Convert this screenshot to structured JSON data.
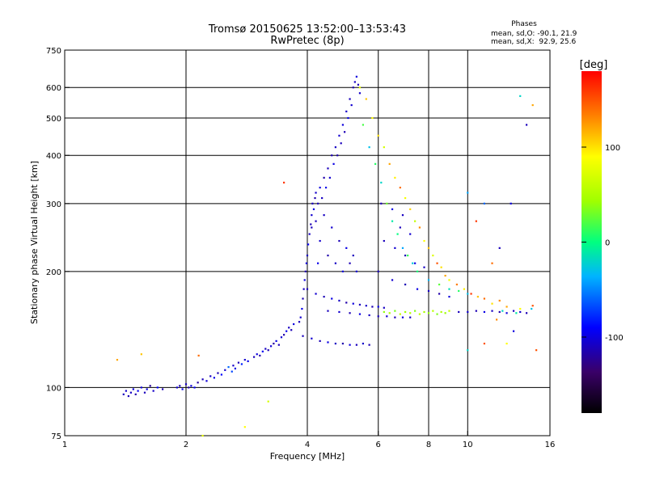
{
  "title": "Tromsø 20150625 13:52:00–13:53:43",
  "subtitle": "RwPretec (8p)",
  "stats": {
    "heading": "Phases",
    "line_o": "mean, sd,O: -90.1, 21.9",
    "line_x": "mean, sd,X:  92.9, 25.6"
  },
  "colorbar": {
    "label": "[deg]",
    "range": [
      -180,
      180
    ],
    "ticks": [
      {
        "value": 100,
        "label": "100"
      },
      {
        "value": 0,
        "label": "0"
      },
      {
        "value": -100,
        "label": "-100"
      }
    ]
  },
  "chart_data": {
    "type": "scatter",
    "xlabel": "Frequency [MHz]",
    "ylabel": "Stationary phase Virtual Height [km]",
    "xscale": "log",
    "yscale": "log",
    "xlim": [
      1,
      16
    ],
    "ylim": [
      75,
      750
    ],
    "grid": true,
    "x_ticks": [
      {
        "value": 1,
        "label": "1"
      },
      {
        "value": 2,
        "label": "2"
      },
      {
        "value": 4,
        "label": "4"
      },
      {
        "value": 6,
        "label": "6"
      },
      {
        "value": 8,
        "label": "8"
      },
      {
        "value": 10,
        "label": "10"
      },
      {
        "value": 16,
        "label": "16"
      }
    ],
    "y_ticks": [
      {
        "value": 75,
        "label": "75"
      },
      {
        "value": 100,
        "label": "100"
      },
      {
        "value": 200,
        "label": "200"
      },
      {
        "value": 300,
        "label": "300"
      },
      {
        "value": 400,
        "label": "400"
      },
      {
        "value": 500,
        "label": "500"
      },
      {
        "value": 600,
        "label": "600"
      },
      {
        "value": 750,
        "label": "750"
      }
    ],
    "x_grid": [
      2,
      4,
      6,
      8,
      10
    ],
    "y_grid": [
      100,
      200,
      300,
      400,
      500,
      600
    ],
    "points": [
      [
        1.4,
        96,
        -110
      ],
      [
        1.42,
        98,
        -105
      ],
      [
        1.44,
        95,
        -112
      ],
      [
        1.46,
        97,
        -108
      ],
      [
        1.48,
        99,
        -100
      ],
      [
        1.5,
        96,
        -115
      ],
      [
        1.52,
        98,
        -95
      ],
      [
        1.55,
        100,
        -102
      ],
      [
        1.58,
        97,
        -110
      ],
      [
        1.6,
        99,
        -98
      ],
      [
        1.63,
        101,
        -120
      ],
      [
        1.66,
        98,
        -106
      ],
      [
        1.7,
        100,
        -90
      ],
      [
        1.75,
        99,
        -112
      ],
      [
        1.9,
        100,
        -104
      ],
      [
        1.93,
        101,
        -110
      ],
      [
        1.96,
        99,
        -96
      ],
      [
        2.0,
        102,
        -108
      ],
      [
        2.03,
        100,
        -115
      ],
      [
        2.06,
        101,
        -100
      ],
      [
        2.1,
        100,
        -92
      ],
      [
        2.14,
        103,
        -118
      ],
      [
        2.2,
        105,
        -110
      ],
      [
        2.25,
        104,
        -102
      ],
      [
        2.3,
        107,
        -108
      ],
      [
        2.35,
        106,
        -96
      ],
      [
        2.4,
        109,
        -112
      ],
      [
        2.45,
        108,
        -88
      ],
      [
        2.5,
        111,
        -104
      ],
      [
        2.55,
        113,
        -60
      ],
      [
        2.6,
        110,
        -70
      ],
      [
        2.62,
        114,
        -106
      ],
      [
        2.65,
        112,
        -98
      ],
      [
        2.7,
        116,
        -112
      ],
      [
        2.75,
        115,
        -80
      ],
      [
        2.8,
        118,
        -104
      ],
      [
        2.85,
        117,
        -96
      ],
      [
        2.95,
        120,
        -110
      ],
      [
        3.0,
        122,
        -100
      ],
      [
        3.05,
        121,
        -115
      ],
      [
        3.1,
        124,
        -94
      ],
      [
        3.15,
        126,
        -108
      ],
      [
        3.2,
        125,
        -112
      ],
      [
        3.25,
        128,
        -102
      ],
      [
        3.3,
        130,
        -118
      ],
      [
        3.35,
        132,
        -98
      ],
      [
        3.4,
        129,
        -110
      ],
      [
        3.45,
        135,
        -104
      ],
      [
        3.5,
        137,
        -115
      ],
      [
        3.55,
        140,
        -96
      ],
      [
        3.6,
        143,
        -108
      ],
      [
        3.65,
        141,
        -112
      ],
      [
        3.7,
        146,
        -100
      ],
      [
        3.82,
        148,
        -110
      ],
      [
        3.85,
        152,
        -104
      ],
      [
        3.88,
        160,
        -96
      ],
      [
        3.9,
        170,
        -112
      ],
      [
        3.92,
        180,
        -108
      ],
      [
        3.94,
        190,
        -100
      ],
      [
        3.96,
        200,
        -115
      ],
      [
        3.98,
        210,
        -102
      ],
      [
        4.0,
        220,
        -110
      ],
      [
        4.02,
        235,
        -95
      ],
      [
        4.05,
        250,
        -108
      ],
      [
        4.08,
        265,
        -112
      ],
      [
        4.1,
        280,
        -104
      ],
      [
        4.12,
        300,
        -110
      ],
      [
        4.15,
        290,
        -98
      ],
      [
        4.18,
        310,
        -115
      ],
      [
        4.2,
        320,
        -106
      ],
      [
        4.25,
        300,
        -112
      ],
      [
        4.3,
        330,
        -100
      ],
      [
        4.35,
        310,
        -108
      ],
      [
        4.4,
        350,
        -115
      ],
      [
        4.45,
        330,
        -96
      ],
      [
        4.5,
        370,
        -110
      ],
      [
        4.55,
        350,
        -104
      ],
      [
        4.6,
        400,
        -112
      ],
      [
        4.65,
        380,
        -98
      ],
      [
        4.7,
        420,
        -108
      ],
      [
        4.75,
        400,
        -115
      ],
      [
        4.8,
        450,
        -104
      ],
      [
        4.85,
        430,
        -110
      ],
      [
        4.9,
        480,
        -100
      ],
      [
        4.95,
        460,
        -112
      ],
      [
        5.0,
        520,
        -106
      ],
      [
        5.05,
        500,
        -96
      ],
      [
        5.1,
        560,
        -110
      ],
      [
        5.15,
        540,
        -104
      ],
      [
        5.2,
        600,
        -115
      ],
      [
        5.25,
        620,
        -108
      ],
      [
        5.3,
        640,
        -100
      ],
      [
        5.35,
        610,
        -112
      ],
      [
        5.4,
        580,
        -106
      ],
      [
        4.2,
        270,
        -110
      ],
      [
        4.4,
        280,
        -108
      ],
      [
        4.6,
        260,
        -104
      ],
      [
        4.8,
        240,
        -112
      ],
      [
        5.0,
        230,
        -98
      ],
      [
        5.2,
        220,
        -110
      ],
      [
        4.3,
        240,
        -105
      ],
      [
        4.5,
        220,
        -115
      ],
      [
        4.7,
        210,
        -108
      ],
      [
        4.9,
        200,
        -100
      ],
      [
        5.1,
        210,
        -112
      ],
      [
        5.3,
        200,
        -104
      ],
      [
        4.1,
        260,
        -110
      ],
      [
        4.25,
        210,
        -96
      ],
      [
        4.0,
        180,
        -110
      ],
      [
        4.2,
        175,
        -104
      ],
      [
        4.4,
        172,
        -112
      ],
      [
        4.6,
        170,
        -98
      ],
      [
        4.8,
        168,
        -108
      ],
      [
        5.0,
        166,
        -115
      ],
      [
        5.2,
        165,
        -100
      ],
      [
        5.4,
        164,
        -110
      ],
      [
        5.6,
        163,
        -106
      ],
      [
        5.8,
        162,
        -112
      ],
      [
        6.0,
        162,
        -96
      ],
      [
        6.2,
        161,
        -108
      ],
      [
        4.5,
        158,
        -110
      ],
      [
        4.8,
        157,
        -104
      ],
      [
        5.1,
        156,
        -112
      ],
      [
        5.4,
        155,
        -98
      ],
      [
        5.7,
        154,
        -108
      ],
      [
        6.0,
        153,
        -110
      ],
      [
        6.3,
        153,
        -104
      ],
      [
        6.6,
        152,
        -112
      ],
      [
        6.9,
        152,
        -100
      ],
      [
        7.2,
        152,
        -108
      ],
      [
        3.9,
        136,
        -110
      ],
      [
        4.1,
        134,
        -104
      ],
      [
        4.3,
        132,
        -112
      ],
      [
        4.5,
        131,
        -98
      ],
      [
        4.7,
        130,
        -108
      ],
      [
        4.9,
        130,
        -115
      ],
      [
        5.1,
        129,
        -100
      ],
      [
        5.3,
        129,
        -110
      ],
      [
        5.5,
        130,
        -106
      ],
      [
        5.7,
        129,
        -112
      ],
      [
        6.2,
        157,
        40
      ],
      [
        6.4,
        156,
        50
      ],
      [
        6.6,
        158,
        35
      ],
      [
        6.8,
        155,
        60
      ],
      [
        7.0,
        157,
        45
      ],
      [
        7.2,
        156,
        55
      ],
      [
        7.4,
        158,
        38
      ],
      [
        7.6,
        155,
        62
      ],
      [
        7.8,
        157,
        48
      ],
      [
        8.0,
        156,
        42
      ],
      [
        8.2,
        158,
        58
      ],
      [
        8.4,
        155,
        36
      ],
      [
        8.6,
        157,
        52
      ],
      [
        8.8,
        156,
        44
      ],
      [
        9.0,
        158,
        60
      ],
      [
        9.5,
        157,
        -110
      ],
      [
        10.0,
        157,
        -104
      ],
      [
        10.5,
        158,
        -112
      ],
      [
        11.0,
        157,
        -98
      ],
      [
        11.5,
        158,
        -108
      ],
      [
        12.0,
        157,
        -115
      ],
      [
        12.5,
        156,
        -100
      ],
      [
        13.0,
        158,
        -110
      ],
      [
        13.5,
        157,
        -106
      ],
      [
        14.0,
        156,
        -112
      ],
      [
        12.2,
        158,
        -20
      ],
      [
        13.2,
        156,
        -10
      ],
      [
        14.4,
        160,
        -30
      ],
      [
        5.4,
        600,
        80
      ],
      [
        5.6,
        560,
        110
      ],
      [
        5.8,
        500,
        90
      ],
      [
        6.0,
        450,
        100
      ],
      [
        6.2,
        420,
        70
      ],
      [
        6.4,
        380,
        120
      ],
      [
        6.6,
        350,
        95
      ],
      [
        6.8,
        330,
        140
      ],
      [
        7.0,
        310,
        85
      ],
      [
        7.2,
        290,
        105
      ],
      [
        7.4,
        270,
        60
      ],
      [
        7.6,
        260,
        130
      ],
      [
        7.8,
        240,
        90
      ],
      [
        8.0,
        230,
        110
      ],
      [
        8.2,
        220,
        75
      ],
      [
        8.4,
        210,
        150
      ],
      [
        8.6,
        205,
        100
      ],
      [
        8.8,
        195,
        120
      ],
      [
        9.0,
        190,
        85
      ],
      [
        9.4,
        185,
        135
      ],
      [
        9.8,
        180,
        95
      ],
      [
        10.2,
        175,
        160
      ],
      [
        10.6,
        172,
        110
      ],
      [
        11.0,
        170,
        140
      ],
      [
        11.5,
        165,
        100
      ],
      [
        12.0,
        168,
        130
      ],
      [
        12.5,
        162,
        120
      ],
      [
        13.5,
        160,
        90
      ],
      [
        14.5,
        163,
        150
      ],
      [
        5.5,
        480,
        20
      ],
      [
        5.7,
        420,
        -30
      ],
      [
        5.9,
        380,
        10
      ],
      [
        6.1,
        340,
        -20
      ],
      [
        6.3,
        300,
        30
      ],
      [
        6.5,
        270,
        -10
      ],
      [
        6.7,
        250,
        0
      ],
      [
        6.9,
        230,
        -40
      ],
      [
        7.1,
        220,
        15
      ],
      [
        7.3,
        210,
        -25
      ],
      [
        7.5,
        200,
        5
      ],
      [
        8.0,
        190,
        -35
      ],
      [
        8.5,
        185,
        25
      ],
      [
        9.0,
        180,
        -15
      ],
      [
        9.5,
        178,
        10
      ],
      [
        10.0,
        175,
        -30
      ],
      [
        6.0,
        200,
        -110
      ],
      [
        6.5,
        190,
        -104
      ],
      [
        7.0,
        185,
        -112
      ],
      [
        7.5,
        180,
        -98
      ],
      [
        8.0,
        178,
        -108
      ],
      [
        8.5,
        175,
        -115
      ],
      [
        9.0,
        172,
        -100
      ],
      [
        6.2,
        240,
        -110
      ],
      [
        6.6,
        230,
        -104
      ],
      [
        7.0,
        220,
        -112
      ],
      [
        7.4,
        210,
        -98
      ],
      [
        7.8,
        205,
        -108
      ],
      [
        6.8,
        260,
        -110
      ],
      [
        7.2,
        250,
        -104
      ],
      [
        6.1,
        300,
        -112
      ],
      [
        6.5,
        290,
        -98
      ],
      [
        6.9,
        280,
        -108
      ],
      [
        11.0,
        300,
        -60
      ],
      [
        11.5,
        210,
        140
      ],
      [
        12.0,
        230,
        -110
      ],
      [
        12.8,
        300,
        -100
      ],
      [
        13.5,
        570,
        -20
      ],
      [
        14.0,
        480,
        -110
      ],
      [
        14.5,
        540,
        120
      ],
      [
        10.0,
        320,
        -40
      ],
      [
        11.8,
        150,
        130
      ],
      [
        10.5,
        270,
        160
      ],
      [
        12.5,
        130,
        90
      ],
      [
        14.8,
        125,
        150
      ],
      [
        3.5,
        340,
        160
      ],
      [
        3.2,
        92,
        70
      ],
      [
        2.2,
        75,
        80
      ],
      [
        1.35,
        118,
        120
      ],
      [
        1.55,
        122,
        110
      ],
      [
        2.15,
        121,
        140
      ],
      [
        2.8,
        79,
        90
      ],
      [
        13.0,
        140,
        -100
      ],
      [
        11.0,
        130,
        150
      ],
      [
        10.0,
        125,
        -20
      ]
    ]
  }
}
